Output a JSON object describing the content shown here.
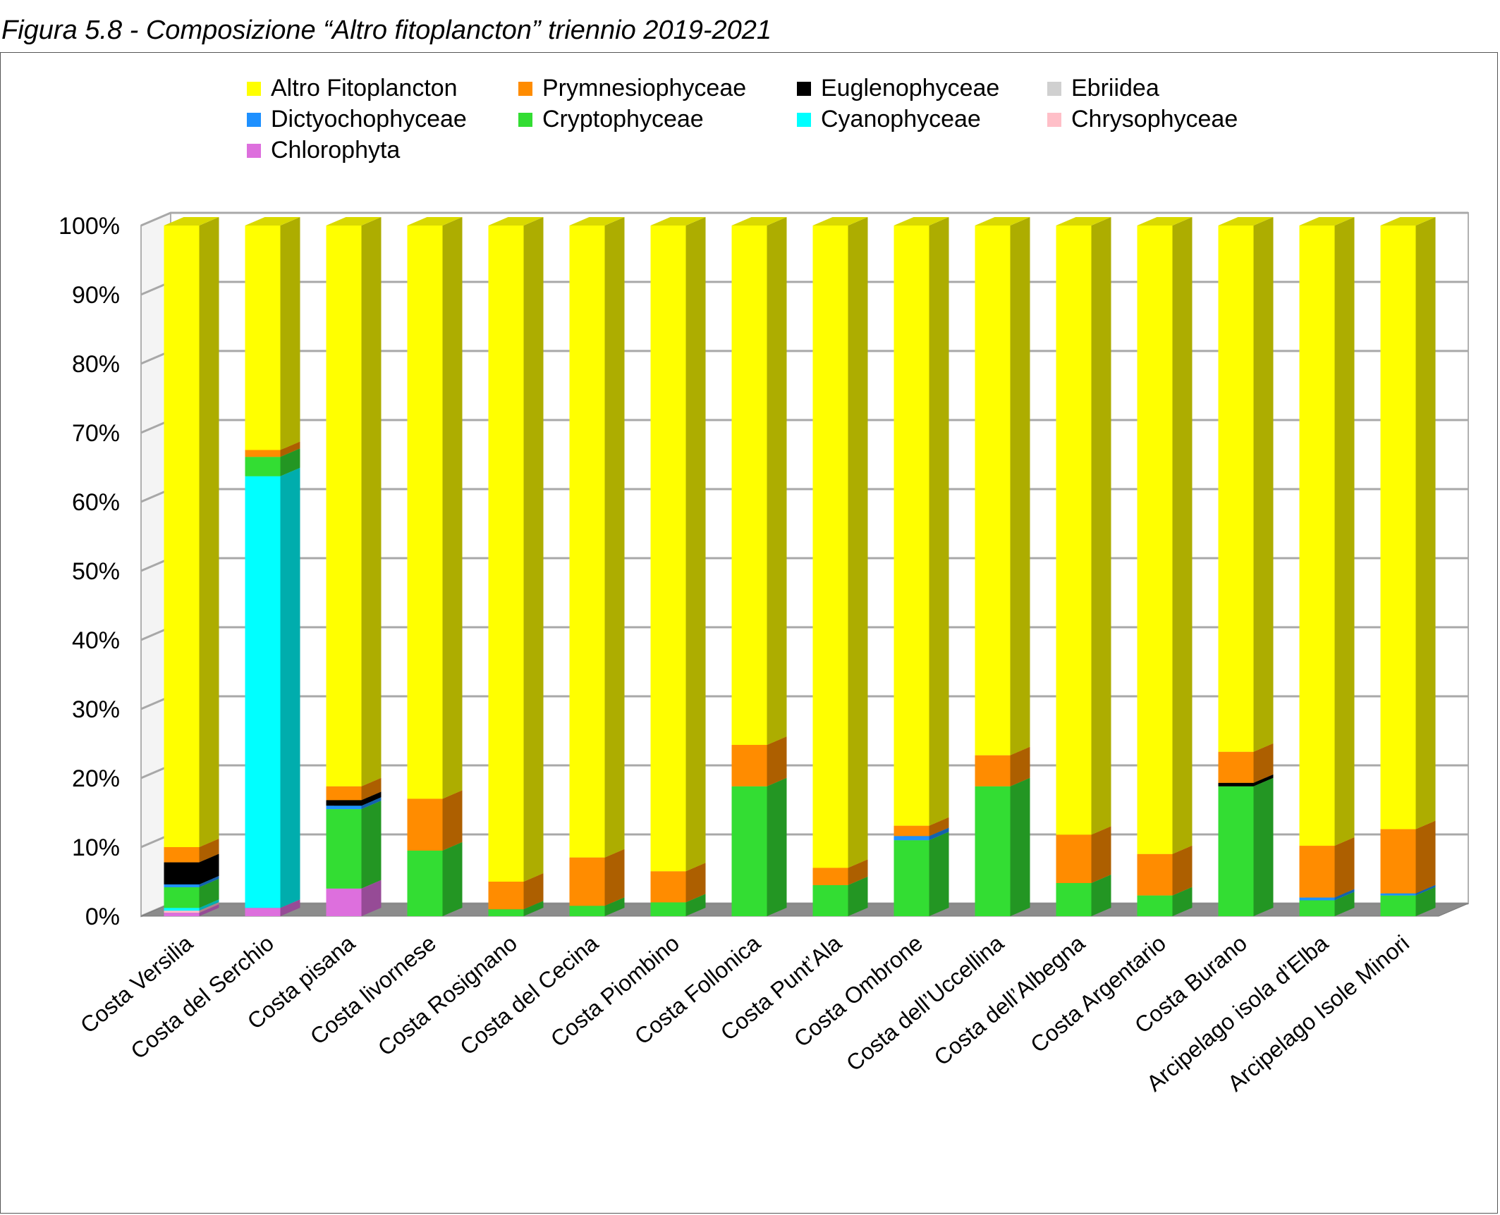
{
  "figure_title": "Figura 5.8 - Composizione “Altro fitoplancton” triennio  2019-2021",
  "chart_data": {
    "type": "bar",
    "stacked": true,
    "percent": true,
    "title": "Figura 5.8 - Composizione “Altro fitoplancton” triennio  2019-2021",
    "xlabel": "",
    "ylabel": "",
    "ylim": [
      0,
      100
    ],
    "yticks": [
      "0%",
      "10%",
      "20%",
      "30%",
      "40%",
      "50%",
      "60%",
      "70%",
      "80%",
      "90%",
      "100%"
    ],
    "legend_position": "top",
    "grid": true,
    "categories": [
      "Costa Versilia",
      "Costa del Serchio",
      "Costa pisana",
      "Costa livornese",
      "Costa Rosignano",
      "Costa del Cecina",
      "Costa Piombino",
      "Costa Follonica",
      "Costa Punt’Ala",
      "Costa Ombrone",
      "Costa dell’Uccellina",
      "Costa dell’Albegna",
      "Costa Argentario",
      "Costa Burano",
      "Arcipelago isola d’Elba",
      "Arcipelago Isole Minori"
    ],
    "series": [
      {
        "name": "Chlorophyta",
        "color": "#dd6fdd",
        "values": [
          0.5,
          1.2,
          4.0,
          0,
          0,
          0,
          0,
          0,
          0,
          0,
          0,
          0,
          0,
          0,
          0,
          0
        ]
      },
      {
        "name": "Chrysophyceae",
        "color": "#ffbfc8",
        "values": [
          0.3,
          0,
          0,
          0,
          0,
          0,
          0,
          0,
          0,
          0,
          0,
          0,
          0,
          0,
          0,
          0
        ]
      },
      {
        "name": "Cyanophyceae",
        "color": "#00ffff",
        "values": [
          0.4,
          62.5,
          0,
          0,
          0,
          0,
          0,
          0,
          0,
          0,
          0,
          0,
          0,
          0,
          0,
          0
        ]
      },
      {
        "name": "Cryptophyceae",
        "color": "#33dd33",
        "values": [
          3.0,
          2.8,
          11.5,
          9.5,
          1.0,
          1.5,
          2.0,
          18.8,
          4.5,
          11.0,
          18.8,
          4.8,
          3.0,
          18.8,
          2.3,
          3.0
        ]
      },
      {
        "name": "Dictyochophyceae",
        "color": "#1e90ff",
        "values": [
          0.4,
          0,
          0.5,
          0,
          0,
          0,
          0,
          0,
          0,
          0.6,
          0,
          0,
          0,
          0,
          0.4,
          0.3
        ]
      },
      {
        "name": "Ebriidea",
        "color": "#d0d0d0",
        "values": [
          0,
          0,
          0,
          0,
          0,
          0,
          0,
          0,
          0,
          0,
          0,
          0,
          0,
          0,
          0,
          0
        ]
      },
      {
        "name": "Euglenophyceae",
        "color": "#000000",
        "values": [
          3.2,
          0,
          0.8,
          0,
          0,
          0,
          0,
          0,
          0,
          0,
          0,
          0,
          0,
          0.5,
          0,
          0
        ]
      },
      {
        "name": "Prymnesiophyceae",
        "color": "#ff8c00",
        "values": [
          2.2,
          1.0,
          2.0,
          7.5,
          4.0,
          7.0,
          4.5,
          6.0,
          2.5,
          1.5,
          4.5,
          7.0,
          6.0,
          4.5,
          7.5,
          9.3
        ]
      },
      {
        "name": "Altro Fitoplancton",
        "color": "#ffff00",
        "values": [
          90.0,
          32.5,
          81.2,
          83.0,
          95.0,
          91.5,
          93.5,
          75.2,
          93.0,
          86.9,
          76.7,
          88.2,
          91.0,
          76.2,
          89.8,
          87.4
        ]
      }
    ],
    "legend_entries": [
      {
        "name": "Altro Fitoplancton",
        "color": "#ffff00"
      },
      {
        "name": "Prymnesiophyceae",
        "color": "#ff8c00"
      },
      {
        "name": "Euglenophyceae",
        "color": "#000000"
      },
      {
        "name": "Ebriidea",
        "color": "#d0d0d0"
      },
      {
        "name": "Dictyochophyceae",
        "color": "#1e90ff"
      },
      {
        "name": "Cryptophyceae",
        "color": "#33dd33"
      },
      {
        "name": "Cyanophyceae",
        "color": "#00ffff"
      },
      {
        "name": "Chrysophyceae",
        "color": "#ffbfc8"
      },
      {
        "name": "Chlorophyta",
        "color": "#dd6fdd"
      }
    ]
  }
}
